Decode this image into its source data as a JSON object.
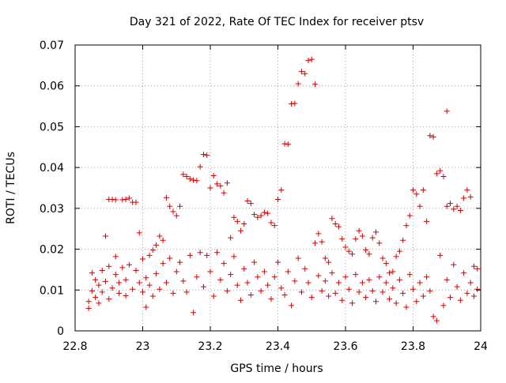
{
  "chart_data": {
    "type": "scatter",
    "title": "Day 321 of 2022, Rate Of TEC Index for receiver ptsv",
    "xlabel": "GPS time / hours",
    "ylabel": "ROTI / TECUs",
    "xlim": [
      22.8,
      24.0
    ],
    "ylim": [
      0,
      0.07
    ],
    "x_ticks": [
      "22.8",
      "23",
      "23.2",
      "23.4",
      "23.6",
      "23.8",
      "24"
    ],
    "y_ticks": [
      "0",
      "0.01",
      "0.02",
      "0.03",
      "0.04",
      "0.05",
      "0.06",
      "0.07"
    ],
    "grid": true,
    "marker": "+",
    "color": "#d40000",
    "series": [
      {
        "values": [
          [
            22.84,
            0.0055
          ],
          [
            22.84,
            0.0072
          ],
          [
            22.85,
            0.0098
          ],
          [
            22.85,
            0.0142
          ],
          [
            22.86,
            0.0125
          ],
          [
            22.86,
            0.0082
          ],
          [
            22.87,
            0.0112
          ],
          [
            22.87,
            0.0068
          ],
          [
            22.88,
            0.0148
          ],
          [
            22.88,
            0.0095
          ],
          [
            22.89,
            0.0232
          ],
          [
            22.89,
            0.0121
          ],
          [
            22.9,
            0.0158
          ],
          [
            22.9,
            0.0322
          ],
          [
            22.9,
            0.0078
          ],
          [
            22.91,
            0.0105
          ],
          [
            22.91,
            0.0322
          ],
          [
            22.92,
            0.0138
          ],
          [
            22.92,
            0.0182
          ],
          [
            22.92,
            0.0321
          ],
          [
            22.93,
            0.0092
          ],
          [
            22.93,
            0.0118
          ],
          [
            22.94,
            0.0321
          ],
          [
            22.94,
            0.0155
          ],
          [
            22.95,
            0.0322
          ],
          [
            22.95,
            0.0125
          ],
          [
            22.95,
            0.0086
          ],
          [
            22.96,
            0.0325
          ],
          [
            22.96,
            0.0162
          ],
          [
            22.97,
            0.0315
          ],
          [
            22.97,
            0.0102
          ],
          [
            22.98,
            0.0315
          ],
          [
            22.98,
            0.0148
          ],
          [
            22.99,
            0.024
          ],
          [
            22.99,
            0.0118
          ],
          [
            23.0,
            0.0176
          ],
          [
            23.0,
            0.0095
          ],
          [
            23.01,
            0.0058
          ],
          [
            23.01,
            0.013
          ],
          [
            23.02,
            0.0185
          ],
          [
            23.02,
            0.0112
          ],
          [
            23.03,
            0.0198
          ],
          [
            23.03,
            0.0085
          ],
          [
            23.04,
            0.021
          ],
          [
            23.04,
            0.014
          ],
          [
            23.05,
            0.0232
          ],
          [
            23.05,
            0.0102
          ],
          [
            23.06,
            0.0222
          ],
          [
            23.06,
            0.0165
          ],
          [
            23.07,
            0.0326
          ],
          [
            23.07,
            0.0118
          ],
          [
            23.08,
            0.0305
          ],
          [
            23.08,
            0.0178
          ],
          [
            23.09,
            0.0292
          ],
          [
            23.09,
            0.0092
          ],
          [
            23.1,
            0.0282
          ],
          [
            23.1,
            0.0145
          ],
          [
            23.11,
            0.0305
          ],
          [
            23.11,
            0.0168
          ],
          [
            23.12,
            0.0383
          ],
          [
            23.12,
            0.0122
          ],
          [
            23.13,
            0.0378
          ],
          [
            23.13,
            0.0095
          ],
          [
            23.14,
            0.0372
          ],
          [
            23.14,
            0.0185
          ],
          [
            23.15,
            0.0369
          ],
          [
            23.15,
            0.0045
          ],
          [
            23.16,
            0.0368
          ],
          [
            23.16,
            0.0132
          ],
          [
            23.17,
            0.0402
          ],
          [
            23.17,
            0.0192
          ],
          [
            23.18,
            0.0432
          ],
          [
            23.18,
            0.0108
          ],
          [
            23.19,
            0.043
          ],
          [
            23.19,
            0.0185
          ],
          [
            23.2,
            0.035
          ],
          [
            23.2,
            0.0145
          ],
          [
            23.21,
            0.038
          ],
          [
            23.21,
            0.0085
          ],
          [
            23.22,
            0.036
          ],
          [
            23.22,
            0.0192
          ],
          [
            23.23,
            0.0355
          ],
          [
            23.23,
            0.0125
          ],
          [
            23.24,
            0.0338
          ],
          [
            23.24,
            0.0165
          ],
          [
            23.25,
            0.0362
          ],
          [
            23.25,
            0.0098
          ],
          [
            23.26,
            0.0228
          ],
          [
            23.26,
            0.0138
          ],
          [
            23.27,
            0.0278
          ],
          [
            23.27,
            0.0182
          ],
          [
            23.28,
            0.0268
          ],
          [
            23.28,
            0.0112
          ],
          [
            23.29,
            0.0245
          ],
          [
            23.29,
            0.0075
          ],
          [
            23.3,
            0.0262
          ],
          [
            23.3,
            0.0152
          ],
          [
            23.31,
            0.0318
          ],
          [
            23.31,
            0.0118
          ],
          [
            23.32,
            0.0312
          ],
          [
            23.32,
            0.0088
          ],
          [
            23.33,
            0.0285
          ],
          [
            23.33,
            0.0168
          ],
          [
            23.34,
            0.0278
          ],
          [
            23.34,
            0.0132
          ],
          [
            23.35,
            0.0282
          ],
          [
            23.35,
            0.0098
          ],
          [
            23.36,
            0.029
          ],
          [
            23.36,
            0.0145
          ],
          [
            23.37,
            0.0288
          ],
          [
            23.37,
            0.0112
          ],
          [
            23.38,
            0.0265
          ],
          [
            23.38,
            0.0078
          ],
          [
            23.39,
            0.0258
          ],
          [
            23.39,
            0.0132
          ],
          [
            23.4,
            0.0322
          ],
          [
            23.4,
            0.0168
          ],
          [
            23.41,
            0.0345
          ],
          [
            23.41,
            0.0105
          ],
          [
            23.42,
            0.0458
          ],
          [
            23.42,
            0.0088
          ],
          [
            23.43,
            0.0457
          ],
          [
            23.43,
            0.0145
          ],
          [
            23.44,
            0.0556
          ],
          [
            23.44,
            0.0062
          ],
          [
            23.45,
            0.0557
          ],
          [
            23.45,
            0.0122
          ],
          [
            23.46,
            0.0605
          ],
          [
            23.46,
            0.0178
          ],
          [
            23.47,
            0.0635
          ],
          [
            23.47,
            0.0095
          ],
          [
            23.48,
            0.063
          ],
          [
            23.48,
            0.0152
          ],
          [
            23.49,
            0.0662
          ],
          [
            23.49,
            0.0118
          ],
          [
            23.5,
            0.0665
          ],
          [
            23.5,
            0.0082
          ],
          [
            23.51,
            0.0604
          ],
          [
            23.51,
            0.0215
          ],
          [
            23.52,
            0.0238
          ],
          [
            23.52,
            0.0135
          ],
          [
            23.53,
            0.0218
          ],
          [
            23.53,
            0.0098
          ],
          [
            23.54,
            0.0178
          ],
          [
            23.54,
            0.0122
          ],
          [
            23.55,
            0.0168
          ],
          [
            23.55,
            0.0085
          ],
          [
            23.56,
            0.0275
          ],
          [
            23.56,
            0.0142
          ],
          [
            23.57,
            0.0262
          ],
          [
            23.57,
            0.0092
          ],
          [
            23.58,
            0.0255
          ],
          [
            23.58,
            0.0118
          ],
          [
            23.59,
            0.0225
          ],
          [
            23.59,
            0.0075
          ],
          [
            23.6,
            0.0205
          ],
          [
            23.6,
            0.0132
          ],
          [
            23.61,
            0.0195
          ],
          [
            23.61,
            0.0102
          ],
          [
            23.62,
            0.0188
          ],
          [
            23.62,
            0.0068
          ],
          [
            23.63,
            0.0225
          ],
          [
            23.63,
            0.0138
          ],
          [
            23.64,
            0.0245
          ],
          [
            23.64,
            0.0095
          ],
          [
            23.65,
            0.0232
          ],
          [
            23.65,
            0.0118
          ],
          [
            23.66,
            0.0198
          ],
          [
            23.66,
            0.0082
          ],
          [
            23.67,
            0.0188
          ],
          [
            23.67,
            0.0125
          ],
          [
            23.68,
            0.0228
          ],
          [
            23.68,
            0.0098
          ],
          [
            23.69,
            0.0242
          ],
          [
            23.69,
            0.0072
          ],
          [
            23.7,
            0.0215
          ],
          [
            23.7,
            0.0132
          ],
          [
            23.71,
            0.0178
          ],
          [
            23.71,
            0.0095
          ],
          [
            23.72,
            0.0165
          ],
          [
            23.72,
            0.0118
          ],
          [
            23.73,
            0.0142
          ],
          [
            23.73,
            0.0078
          ],
          [
            23.74,
            0.0145
          ],
          [
            23.74,
            0.0105
          ],
          [
            23.75,
            0.0182
          ],
          [
            23.75,
            0.0068
          ],
          [
            23.76,
            0.0195
          ],
          [
            23.76,
            0.0125
          ],
          [
            23.77,
            0.0222
          ],
          [
            23.77,
            0.0092
          ],
          [
            23.78,
            0.0258
          ],
          [
            23.78,
            0.0058
          ],
          [
            23.79,
            0.0282
          ],
          [
            23.79,
            0.0138
          ],
          [
            23.8,
            0.0345
          ],
          [
            23.8,
            0.0102
          ],
          [
            23.81,
            0.0335
          ],
          [
            23.81,
            0.0072
          ],
          [
            23.82,
            0.0305
          ],
          [
            23.82,
            0.0118
          ],
          [
            23.83,
            0.0345
          ],
          [
            23.83,
            0.0085
          ],
          [
            23.84,
            0.0268
          ],
          [
            23.84,
            0.0132
          ],
          [
            23.85,
            0.0478
          ],
          [
            23.85,
            0.0098
          ],
          [
            23.86,
            0.0475
          ],
          [
            23.86,
            0.0035
          ],
          [
            23.87,
            0.0385
          ],
          [
            23.87,
            0.0025
          ],
          [
            23.88,
            0.0392
          ],
          [
            23.88,
            0.0185
          ],
          [
            23.89,
            0.0378
          ],
          [
            23.89,
            0.0062
          ],
          [
            23.9,
            0.0305
          ],
          [
            23.9,
            0.0538
          ],
          [
            23.9,
            0.0125
          ],
          [
            23.91,
            0.0312
          ],
          [
            23.91,
            0.0082
          ],
          [
            23.92,
            0.0298
          ],
          [
            23.92,
            0.0162
          ],
          [
            23.93,
            0.0305
          ],
          [
            23.93,
            0.0108
          ],
          [
            23.94,
            0.0295
          ],
          [
            23.94,
            0.0075
          ],
          [
            23.95,
            0.0325
          ],
          [
            23.95,
            0.0142
          ],
          [
            23.96,
            0.0345
          ],
          [
            23.96,
            0.0092
          ],
          [
            23.97,
            0.0328
          ],
          [
            23.97,
            0.0118
          ],
          [
            23.98,
            0.0158
          ],
          [
            23.98,
            0.0085
          ],
          [
            23.99,
            0.0152
          ],
          [
            23.99,
            0.0102
          ]
        ]
      }
    ]
  }
}
